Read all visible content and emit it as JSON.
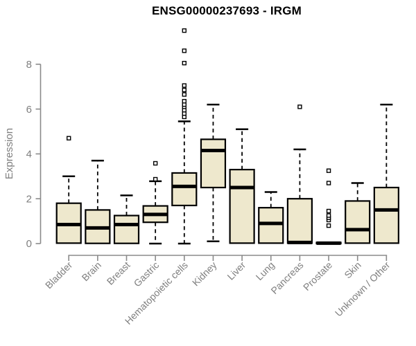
{
  "title": "ENSG00000237693 - IRGM",
  "chart_data": {
    "type": "boxplot",
    "title": "ENSG00000237693 - IRGM",
    "ylabel": "Expression",
    "xlabel": "",
    "yticks": [
      0,
      2,
      4,
      6,
      8
    ],
    "ylim": [
      0,
      8
    ],
    "grid": false,
    "legend": false,
    "x_label_rotation_deg": 45,
    "categories": [
      "Bladder",
      "Brain",
      "Breast",
      "Gastric",
      "Hematopoietic cells",
      "Kidney",
      "Liver",
      "Lung",
      "Pancreas",
      "Prostate",
      "Skin",
      "Unknown / Other"
    ],
    "series": [
      {
        "category": "Bladder",
        "low": 0,
        "q1": 0.02,
        "median": 0.85,
        "q3": 1.8,
        "high": 3.0,
        "outliers": [
          4.7
        ]
      },
      {
        "category": "Brain",
        "low": 0,
        "q1": 0.01,
        "median": 0.7,
        "q3": 1.5,
        "high": 3.7,
        "outliers": []
      },
      {
        "category": "Breast",
        "low": 0,
        "q1": 0.01,
        "median": 0.85,
        "q3": 1.25,
        "high": 2.15,
        "outliers": []
      },
      {
        "category": "Gastric",
        "low": 0,
        "q1": 0.95,
        "median": 1.3,
        "q3": 1.68,
        "high": 2.78,
        "outliers": [
          2.87,
          3.58
        ]
      },
      {
        "category": "Hematopoietic cells",
        "low": 0,
        "q1": 1.7,
        "median": 2.55,
        "q3": 3.15,
        "high": 5.45,
        "outliers": [
          5.65,
          5.8,
          5.95,
          6.1,
          6.2,
          6.35,
          6.65,
          6.85,
          7.05,
          8.05,
          8.6,
          9.5
        ]
      },
      {
        "category": "Kidney",
        "low": 0.1,
        "q1": 2.5,
        "median": 4.15,
        "q3": 4.65,
        "high": 6.2,
        "outliers": []
      },
      {
        "category": "Liver",
        "low": 0,
        "q1": 0.02,
        "median": 2.5,
        "q3": 3.3,
        "high": 5.1,
        "outliers": []
      },
      {
        "category": "Lung",
        "low": 0,
        "q1": 0.02,
        "median": 0.9,
        "q3": 1.6,
        "high": 2.3,
        "outliers": []
      },
      {
        "category": "Pancreas",
        "low": 0,
        "q1": 0.02,
        "median": 0.05,
        "q3": 2.0,
        "high": 4.2,
        "outliers": [
          6.1
        ]
      },
      {
        "category": "Prostate",
        "low": 0,
        "q1": 0.0,
        "median": 0.02,
        "q3": 0.05,
        "high": 0.05,
        "outliers": [
          0.8,
          1.05,
          1.15,
          1.25,
          1.45,
          2.7,
          3.25
        ]
      },
      {
        "category": "Skin",
        "low": 0,
        "q1": 0.02,
        "median": 0.62,
        "q3": 1.9,
        "high": 2.7,
        "outliers": []
      },
      {
        "category": "Unknown / Other",
        "low": 0,
        "q1": 0.02,
        "median": 1.5,
        "q3": 2.5,
        "high": 6.2,
        "outliers": []
      }
    ]
  },
  "colors": {
    "box_fill": "#EEE8CD",
    "box_border": "#000000",
    "median": "#000000",
    "whisker": "#000000",
    "outlier_stroke": "#000000",
    "outlier_fill": "#ffffff",
    "axis": "#8a8a8a",
    "tick_label": "#7f7f7f",
    "title": "#000000",
    "background": "#ffffff"
  }
}
